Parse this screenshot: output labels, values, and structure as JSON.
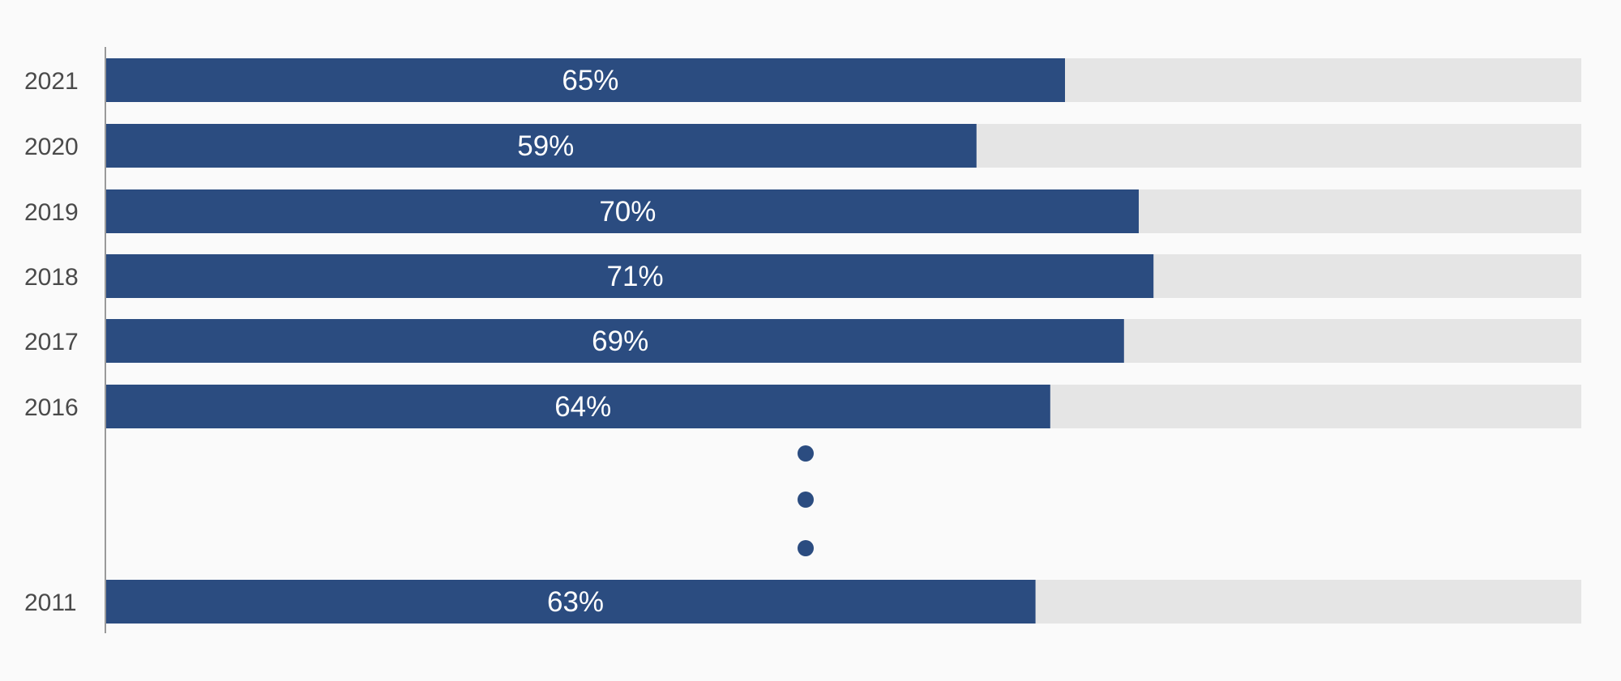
{
  "chart_data": {
    "type": "bar",
    "orientation": "horizontal",
    "categories": [
      "2021",
      "2020",
      "2019",
      "2018",
      "2017",
      "2016",
      "2011"
    ],
    "values": [
      65,
      59,
      70,
      71,
      69,
      64,
      63
    ],
    "labels": [
      "65%",
      "59%",
      "70%",
      "71%",
      "69%",
      "64%",
      "63%"
    ],
    "xlim": [
      0,
      100
    ],
    "unit": "%",
    "grid": false,
    "omitted_years_marker": "ellipsis-dots",
    "colors": {
      "bar": "#2b4c80",
      "track": "#e5e5e5",
      "axis": "#9a9a9a",
      "dots": "#2b4c80"
    }
  }
}
